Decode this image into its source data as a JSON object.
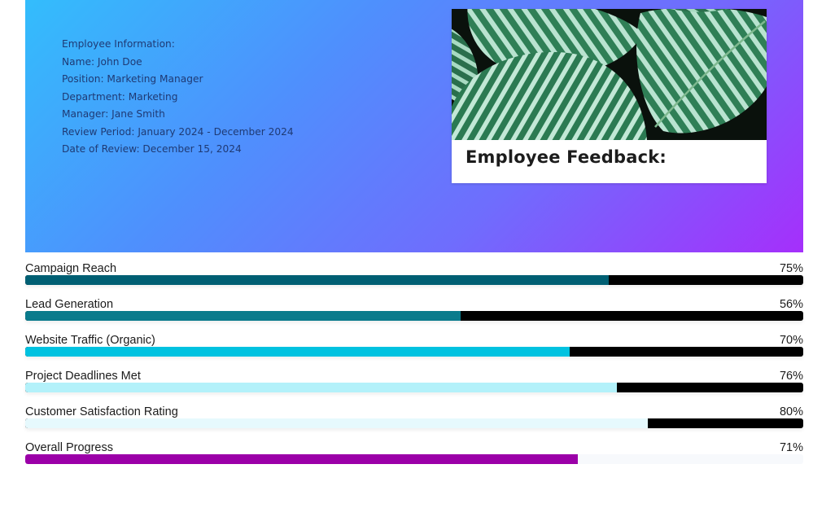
{
  "employee_info": {
    "heading": "Employee Information:",
    "name": "Name: John Doe",
    "position": "Position: Marketing Manager",
    "department": "Department: Marketing",
    "manager": "Manager: Jane Smith",
    "review_period": "Review Period: January 2024 - December 2024",
    "review_date": "Date of Review: December 15, 2024"
  },
  "feedback_card": {
    "title": "Employee Feedback:",
    "image_alt": "striped green calathea leaves"
  },
  "colors": {
    "hero_gradient_start": "#33bdfc",
    "hero_gradient_end": "#a52ffb",
    "track_dark": "#000000",
    "track_light": "#f7f9fc"
  },
  "metrics": [
    {
      "label": "Campaign Reach",
      "value": "75%",
      "percent": 75,
      "fill_color": "#005f73",
      "track_color": "#000000"
    },
    {
      "label": "Lead Generation",
      "value": "56%",
      "percent": 56,
      "fill_color": "#0a7b8c",
      "track_color": "#000000"
    },
    {
      "label": "Website Traffic (Organic)",
      "value": "70%",
      "percent": 70,
      "fill_color": "#00c2e0",
      "track_color": "#000000"
    },
    {
      "label": "Project Deadlines Met",
      "value": "76%",
      "percent": 76,
      "fill_color": "#b3f1fa",
      "track_color": "#000000"
    },
    {
      "label": "Customer Satisfaction Rating",
      "value": "80%",
      "percent": 80,
      "fill_color": "#e6f9fd",
      "track_color": "#000000"
    },
    {
      "label": "Overall Progress",
      "value": "71%",
      "percent": 71,
      "fill_color": "#9b00a8",
      "track_color": "#f7f9fc"
    }
  ]
}
